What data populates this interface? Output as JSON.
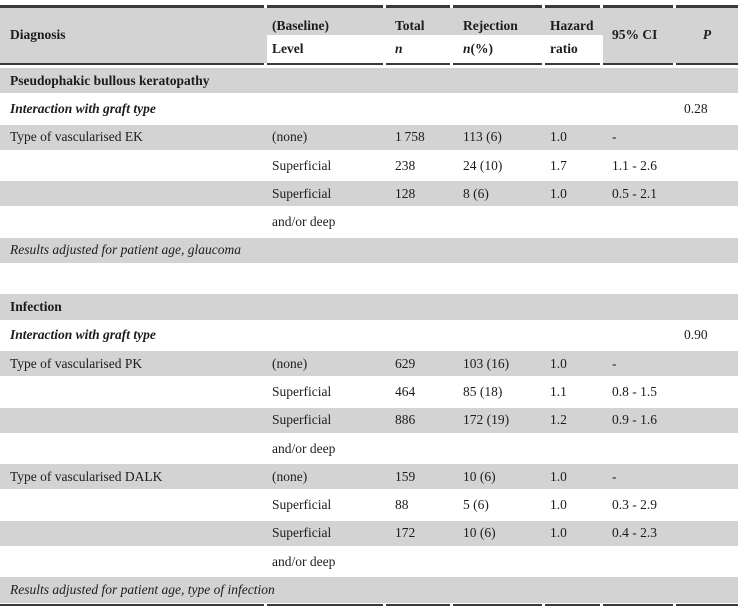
{
  "colors": {
    "row_shade": "#d3d3d3",
    "rule": "#3a3a3a",
    "text": "#1c1c1c"
  },
  "header": {
    "diagnosis": "Diagnosis",
    "baseline": "(Baseline)",
    "level": "Level",
    "total": "Total",
    "total_n": "n",
    "rejection": "Rejection",
    "rejection_n": "n",
    "rejection_pct": " (%)",
    "hazard": "Hazard",
    "ratio": "ratio",
    "ci": "95% CI",
    "p": "P"
  },
  "rows": [
    {
      "type": "section",
      "label": "Pseudophakic bullous keratopathy"
    },
    {
      "type": "interaction",
      "label": "Interaction with graft type",
      "p": "0.28"
    },
    {
      "type": "data",
      "diagnosis": "Type of vascularised EK",
      "level": "(none)",
      "total": "1 758",
      "rejection": "113 (6)",
      "hazard": "1.0",
      "ci": "-"
    },
    {
      "type": "data",
      "diagnosis": "",
      "level": "Superficial",
      "total": "238",
      "rejection": "24 (10)",
      "hazard": "1.7",
      "ci": "1.1 - 2.6"
    },
    {
      "type": "data",
      "diagnosis": "",
      "level": "Superficial",
      "total": "128",
      "rejection": "8 (6)",
      "hazard": "1.0",
      "ci": "0.5 - 2.1"
    },
    {
      "type": "data",
      "diagnosis": "",
      "level": "and/or deep",
      "total": "",
      "rejection": "",
      "hazard": "",
      "ci": ""
    },
    {
      "type": "note",
      "label": "Results adjusted for patient age, glaucoma"
    },
    {
      "type": "blank",
      "label": ""
    },
    {
      "type": "section",
      "label": "Infection"
    },
    {
      "type": "interaction",
      "label": "Interaction with graft type",
      "p": "0.90"
    },
    {
      "type": "data",
      "diagnosis": "Type of vascularised PK",
      "level": "(none)",
      "total": "629",
      "rejection": "103 (16)",
      "hazard": "1.0",
      "ci": "-"
    },
    {
      "type": "data",
      "diagnosis": "",
      "level": "Superficial",
      "total": "464",
      "rejection": "85 (18)",
      "hazard": "1.1",
      "ci": "0.8 - 1.5"
    },
    {
      "type": "data",
      "diagnosis": "",
      "level": "Superficial",
      "total": "886",
      "rejection": "172 (19)",
      "hazard": "1.2",
      "ci": "0.9 - 1.6"
    },
    {
      "type": "data",
      "diagnosis": "",
      "level": "and/or deep",
      "total": "",
      "rejection": "",
      "hazard": "",
      "ci": ""
    },
    {
      "type": "data",
      "diagnosis": "Type of vascularised DALK",
      "level": "(none)",
      "total": "159",
      "rejection": "10 (6)",
      "hazard": "1.0",
      "ci": "-"
    },
    {
      "type": "data",
      "diagnosis": "",
      "level": "Superficial",
      "total": "88",
      "rejection": "5 (6)",
      "hazard": "1.0",
      "ci": "0.3 - 2.9"
    },
    {
      "type": "data",
      "diagnosis": "",
      "level": "Superficial",
      "total": "172",
      "rejection": "10 (6)",
      "hazard": "1.0",
      "ci": "0.4 - 2.3"
    },
    {
      "type": "data",
      "diagnosis": "",
      "level": "and/or deep",
      "total": "",
      "rejection": "",
      "hazard": "",
      "ci": ""
    },
    {
      "type": "note",
      "label": "Results adjusted for patient age, type of infection"
    }
  ]
}
